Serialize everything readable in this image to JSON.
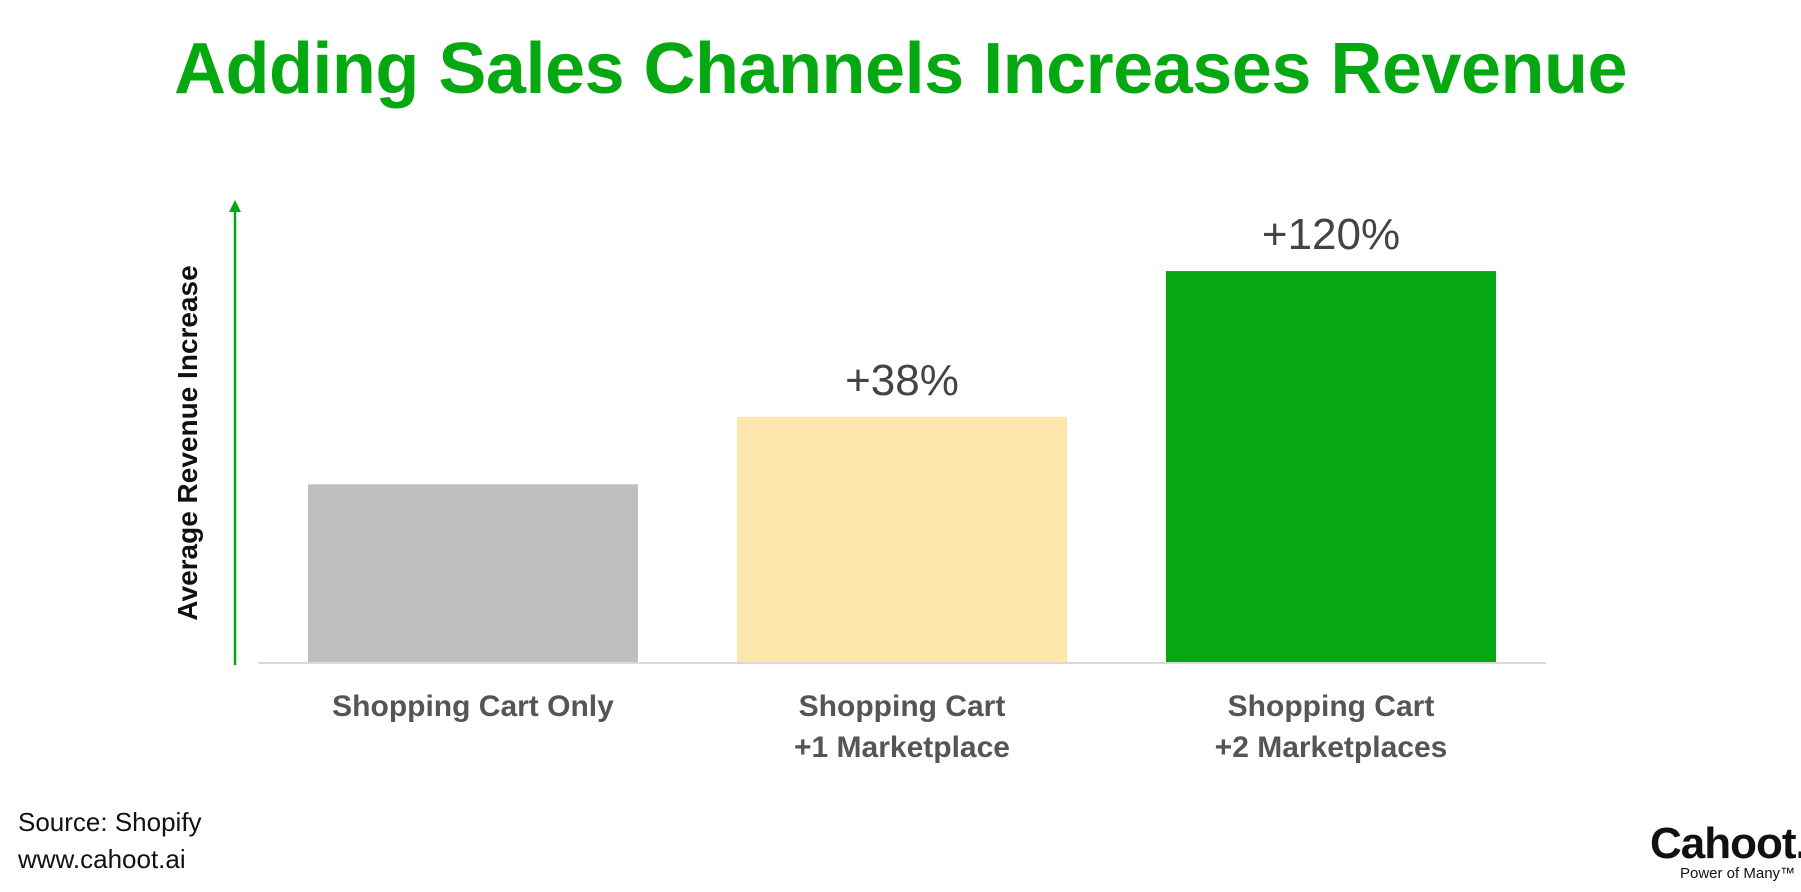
{
  "title": "Adding Sales Channels Increases Revenue",
  "source": {
    "line1": "Source: Shopify",
    "line2": "www.cahoot.ai"
  },
  "logo": {
    "name": "Cahoot.",
    "tagline": "Power of Many™"
  },
  "chart_data": {
    "type": "bar",
    "title": "Adding Sales Channels Increases Revenue",
    "ylabel": "Average Revenue Increase",
    "xlabel": "",
    "grid": false,
    "categories": [
      [
        "Shopping Cart Only"
      ],
      [
        "Shopping Cart",
        "+1 Marketplace"
      ],
      [
        "Shopping Cart",
        "+2 Marketplaces"
      ]
    ],
    "values": [
      100,
      138,
      220
    ],
    "value_labels": [
      "",
      "+38%",
      "+120%"
    ],
    "ylim": [
      0,
      260
    ],
    "colors": [
      "#bfbfbf",
      "#fde6ab",
      "#06a812"
    ],
    "axis_color": "#06a812"
  }
}
